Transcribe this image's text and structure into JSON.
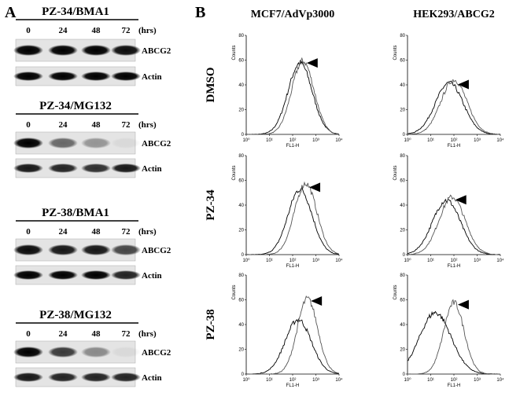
{
  "panel_a": {
    "label": "A",
    "unit": "(hrs)",
    "timepoints": [
      0,
      24,
      48,
      72
    ],
    "rows": [
      "ABCG2",
      "Actin"
    ],
    "blots": [
      {
        "title": "PZ-34/BMA1"
      },
      {
        "title": "PZ-34/MG132"
      },
      {
        "title": "PZ-38/BMA1"
      },
      {
        "title": "PZ-38/MG132"
      }
    ]
  },
  "panel_b": {
    "label": "B",
    "columns": [
      "MCF7/AdVp3000",
      "HEK293/ABCG2"
    ],
    "rows": [
      "DMSO",
      "PZ-34",
      "PZ-38"
    ],
    "histogram": {
      "y_label": "Counts",
      "x_label": "FL1-H",
      "yticks": [
        0,
        20,
        40,
        60,
        80
      ],
      "xticks": [
        "10⁰",
        "10¹",
        "10²",
        "10³",
        "10⁴"
      ]
    }
  }
}
